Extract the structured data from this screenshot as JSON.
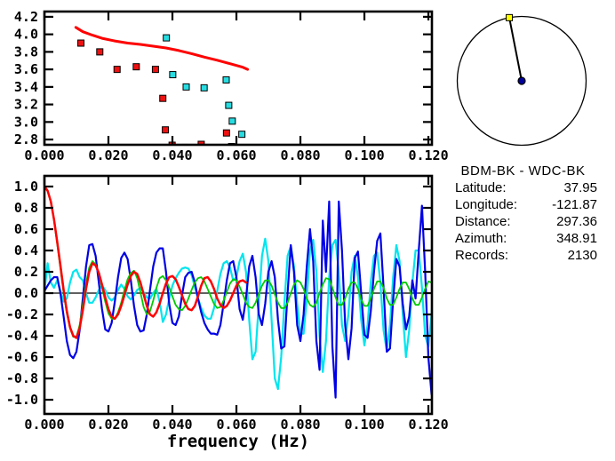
{
  "window": {
    "background": "#ffffff",
    "text_color": "#000000"
  },
  "info_panel": {
    "title": "BDM-BK - WDC-BK",
    "rows": [
      {
        "label": "Latitude:",
        "value": "37.95"
      },
      {
        "label": "Longitude:",
        "value": "-121.87"
      },
      {
        "label": "Distance:",
        "value": "297.36"
      },
      {
        "label": "Azimuth:",
        "value": "348.91"
      },
      {
        "label": "Records:",
        "value": "2130"
      }
    ]
  },
  "azimuth_dial": {
    "azimuth_deg": 348.91,
    "circle_color": "#000000",
    "line_color": "#000000",
    "center_dot_color": "#00009c",
    "end_marker_color": "#ffff00"
  },
  "chart_data": [
    {
      "id": "dispersion-plot",
      "type": "scatter",
      "title": "",
      "xlabel": "",
      "ylabel": "",
      "grid": false,
      "legend": null,
      "x_range": [
        0,
        0.1211
      ],
      "y_range": [
        2.74,
        4.26
      ],
      "x_ticks": {
        "values": [
          0,
          0.02,
          0.04,
          0.06,
          0.08,
          0.1,
          0.12
        ],
        "labels": [
          "0.000",
          "0.020",
          "0.040",
          "0.060",
          "0.080",
          "0.100",
          "0.120"
        ]
      },
      "y_ticks": {
        "values": [
          2.8,
          3.0,
          3.2,
          3.4,
          3.6,
          3.8,
          4.0,
          4.2
        ],
        "labels": [
          "2.8",
          "3.0",
          "3.2",
          "3.4",
          "3.6",
          "3.8",
          "4.0",
          "4.2"
        ]
      },
      "series": [
        {
          "name": "reference-dispersion-curve",
          "kind": "line",
          "color": "#ff0000",
          "width": 3,
          "points": [
            [
              0.0098,
              4.08
            ],
            [
              0.012,
              4.03
            ],
            [
              0.015,
              3.99
            ],
            [
              0.018,
              3.955
            ],
            [
              0.022,
              3.925
            ],
            [
              0.026,
              3.9
            ],
            [
              0.03,
              3.885
            ],
            [
              0.034,
              3.865
            ],
            [
              0.038,
              3.845
            ],
            [
              0.042,
              3.815
            ],
            [
              0.046,
              3.78
            ],
            [
              0.05,
              3.74
            ],
            [
              0.054,
              3.705
            ],
            [
              0.058,
              3.665
            ],
            [
              0.062,
              3.625
            ],
            [
              0.0635,
              3.6
            ]
          ]
        },
        {
          "name": "picked-points-red",
          "kind": "square-markers",
          "color": "#ee1111",
          "marker_size": 7,
          "points": [
            [
              0.0114,
              3.9
            ],
            [
              0.0173,
              3.8
            ],
            [
              0.0227,
              3.6
            ],
            [
              0.0287,
              3.63
            ],
            [
              0.0347,
              3.6
            ],
            [
              0.037,
              3.27
            ],
            [
              0.0378,
              2.91
            ],
            [
              0.0399,
              2.735
            ],
            [
              0.044,
              2.71
            ],
            [
              0.049,
              2.745
            ],
            [
              0.0569,
              2.875
            ],
            [
              0.0585,
              2.72
            ]
          ]
        },
        {
          "name": "picked-points-cyan",
          "kind": "square-markers",
          "color": "#27dde2",
          "marker_size": 7,
          "points": [
            [
              0.0381,
              3.96
            ],
            [
              0.0401,
              3.54
            ],
            [
              0.0443,
              3.4
            ],
            [
              0.0499,
              3.39
            ],
            [
              0.0568,
              3.48
            ],
            [
              0.0576,
              3.19
            ],
            [
              0.0587,
              3.01
            ],
            [
              0.0617,
              2.86
            ]
          ]
        }
      ]
    },
    {
      "id": "correlation-spectra-plot",
      "type": "line",
      "title": "",
      "xlabel": "frequency (Hz)",
      "ylabel": "",
      "grid": false,
      "legend": null,
      "zero_line": true,
      "x_range": [
        0,
        0.1211
      ],
      "y_range": [
        -1.133,
        1.1
      ],
      "x_ticks": {
        "values": [
          0,
          0.02,
          0.04,
          0.06,
          0.08,
          0.1,
          0.12
        ],
        "labels": [
          "0.000",
          "0.020",
          "0.040",
          "0.060",
          "0.080",
          "0.100",
          "0.120"
        ]
      },
      "y_ticks": {
        "values": [
          -1.0,
          -0.8,
          -0.6,
          -0.4,
          -0.2,
          0.0,
          0.2,
          0.4,
          0.6,
          0.8,
          1.0
        ],
        "labels": [
          "-1.0",
          "-0.8",
          "-0.6",
          "-0.4",
          "-0.2",
          "0.0",
          "0.2",
          "0.4",
          "0.6",
          "0.8",
          "1.0"
        ]
      },
      "series": [
        {
          "name": "spectrum-cyan",
          "kind": "line",
          "color": "#00e5ee",
          "width": 2.2,
          "x0": 0,
          "dx": 0.001,
          "values": [
            0.02,
            0.28,
            0.1,
            0.05,
            0.12,
            0.02,
            -0.08,
            -0.05,
            0.1,
            0.2,
            0.22,
            0.15,
            0.12,
            0.0,
            -0.09,
            -0.09,
            -0.04,
            0.03,
            0.07,
            0.03,
            -0.04,
            -0.07,
            -0.04,
            0.03,
            0.08,
            0.04,
            -0.03,
            -0.06,
            -0.02,
            0.03,
            0.05,
            0.01,
            -0.04,
            -0.05,
            0.0,
            0.04,
            -0.08,
            -0.27,
            -0.2,
            -0.05,
            0.07,
            0.14,
            0.19,
            0.23,
            0.24,
            0.23,
            0.17,
            0.06,
            -0.05,
            -0.14,
            -0.21,
            -0.24,
            -0.24,
            -0.14,
            0.02,
            0.18,
            0.28,
            0.3,
            0.24,
            0.12,
            0.15,
            0.3,
            0.37,
            0.2,
            -0.25,
            -0.62,
            -0.55,
            -0.1,
            0.35,
            0.51,
            0.3,
            -0.25,
            -0.8,
            -0.9,
            -0.6,
            -0.1,
            0.35,
            0.44,
            0.25,
            -0.1,
            -0.38,
            -0.38,
            -0.05,
            0.4,
            0.5,
            0.2,
            -0.4,
            -0.74,
            -0.45,
            0.15,
            0.45,
            0.5,
            0.2,
            -0.3,
            -0.45,
            -0.2,
            0.2,
            0.35,
            0.15,
            -0.25,
            -0.49,
            -0.3,
            0.1,
            0.35,
            0.38,
            0.1,
            -0.35,
            -0.54,
            -0.3,
            0.15,
            0.45,
            0.3,
            -0.2,
            -0.6,
            -0.35,
            0.1,
            0.4,
            0.4,
            0.05,
            -0.4,
            -0.5,
            -0.2,
            0.3,
            0.5
          ]
        },
        {
          "name": "spectrum-blue",
          "kind": "line",
          "color": "#0000e6",
          "width": 2.2,
          "x0": 0,
          "dx": 0.001,
          "values": [
            0.02,
            0.07,
            0.12,
            0.15,
            0.15,
            0.0,
            -0.22,
            -0.45,
            -0.58,
            -0.61,
            -0.55,
            -0.35,
            -0.05,
            0.25,
            0.45,
            0.46,
            0.35,
            0.1,
            -0.15,
            -0.34,
            -0.36,
            -0.28,
            -0.08,
            0.15,
            0.33,
            0.38,
            0.32,
            0.12,
            -0.12,
            -0.3,
            -0.36,
            -0.35,
            -0.2,
            0.03,
            0.25,
            0.38,
            0.42,
            0.42,
            0.2,
            -0.1,
            -0.28,
            -0.3,
            -0.22,
            -0.02,
            0.15,
            0.19,
            0.2,
            0.1,
            -0.05,
            -0.18,
            -0.28,
            -0.34,
            -0.38,
            -0.38,
            -0.39,
            -0.3,
            -0.1,
            0.12,
            0.28,
            0.3,
            0.15,
            -0.15,
            -0.25,
            -0.05,
            0.25,
            0.35,
            0.15,
            -0.2,
            -0.3,
            -0.1,
            0.2,
            0.3,
            0.15,
            -0.25,
            -0.52,
            -0.5,
            0.0,
            0.45,
            0.2,
            -0.3,
            -0.45,
            -0.2,
            0.25,
            0.6,
            0.3,
            -0.45,
            -0.72,
            0.68,
            0.2,
            0.86,
            -0.5,
            -0.98,
            0.86,
            0.4,
            -0.3,
            -0.62,
            -0.33,
            0.33,
            0.39,
            0.0,
            -0.39,
            -0.42,
            -0.17,
            0.2,
            0.49,
            0.56,
            0.05,
            -0.55,
            -0.52,
            -0.06,
            0.32,
            0.25,
            -0.1,
            -0.34,
            -0.22,
            0.12,
            -0.05,
            0.4,
            0.82,
            0.2,
            -0.6,
            -0.95,
            -0.4,
            0.3
          ]
        },
        {
          "name": "spectrum-green",
          "kind": "line",
          "color": "#00cc00",
          "width": 1.8,
          "x0": 0,
          "dx": 0.001,
          "values": [
            1.0,
            0.96,
            0.85,
            0.68,
            0.46,
            0.23,
            0.0,
            -0.19,
            -0.33,
            -0.41,
            -0.41,
            -0.3,
            -0.11,
            0.09,
            0.24,
            0.3,
            0.27,
            0.18,
            0.05,
            -0.08,
            -0.19,
            -0.24,
            -0.24,
            -0.18,
            -0.09,
            0.03,
            0.13,
            0.19,
            0.21,
            0.14,
            0.01,
            -0.13,
            -0.2,
            -0.17,
            -0.07,
            0.05,
            0.14,
            0.16,
            0.12,
            0.05,
            -0.03,
            -0.11,
            -0.15,
            -0.16,
            -0.12,
            -0.05,
            0.03,
            0.1,
            0.14,
            0.15,
            0.11,
            0.04,
            -0.03,
            -0.1,
            -0.14,
            -0.13,
            -0.07,
            0.01,
            0.09,
            0.13,
            0.12,
            0.06,
            -0.01,
            -0.09,
            -0.13,
            -0.14,
            -0.09,
            -0.01,
            0.07,
            0.12,
            0.12,
            0.07,
            -0.01,
            -0.09,
            -0.14,
            -0.14,
            -0.09,
            0.0,
            0.08,
            0.12,
            0.1,
            0.04,
            -0.05,
            -0.11,
            -0.13,
            -0.09,
            0.0,
            0.08,
            0.14,
            0.13,
            0.05,
            -0.04,
            -0.11,
            -0.11,
            -0.05,
            0.04,
            0.1,
            0.1,
            0.04,
            -0.06,
            -0.12,
            -0.12,
            -0.05,
            0.04,
            0.11,
            0.11,
            0.05,
            -0.05,
            -0.11,
            -0.11,
            -0.04,
            0.04,
            0.1,
            0.1,
            0.04,
            -0.05,
            -0.11,
            -0.11,
            -0.04,
            0.04,
            0.11,
            0.1,
            0.05,
            -0.02
          ]
        },
        {
          "name": "spectrum-red",
          "kind": "line",
          "color": "#ff0000",
          "width": 2.5,
          "x0": 0,
          "dx": 0.001,
          "values": [
            1.0,
            0.96,
            0.86,
            0.69,
            0.48,
            0.26,
            0.03,
            -0.17,
            -0.32,
            -0.4,
            -0.42,
            -0.33,
            -0.16,
            0.04,
            0.2,
            0.28,
            0.26,
            0.19,
            0.08,
            -0.04,
            -0.15,
            -0.22,
            -0.24,
            -0.2,
            -0.12,
            -0.02,
            0.08,
            0.16,
            0.2,
            0.18,
            0.1,
            -0.01,
            -0.12,
            -0.2,
            -0.22,
            -0.18,
            -0.1,
            0.0,
            0.09,
            0.15,
            0.16,
            0.13,
            0.06,
            -0.02,
            -0.1,
            -0.15,
            -0.16,
            -0.12,
            -0.03,
            0.07,
            0.14,
            0.15,
            0.11,
            0.04,
            -0.05,
            -0.11,
            -0.14,
            -0.12,
            -0.07,
            0.0,
            0.07,
            0.11,
            0.12,
            0.1
          ]
        }
      ]
    }
  ]
}
